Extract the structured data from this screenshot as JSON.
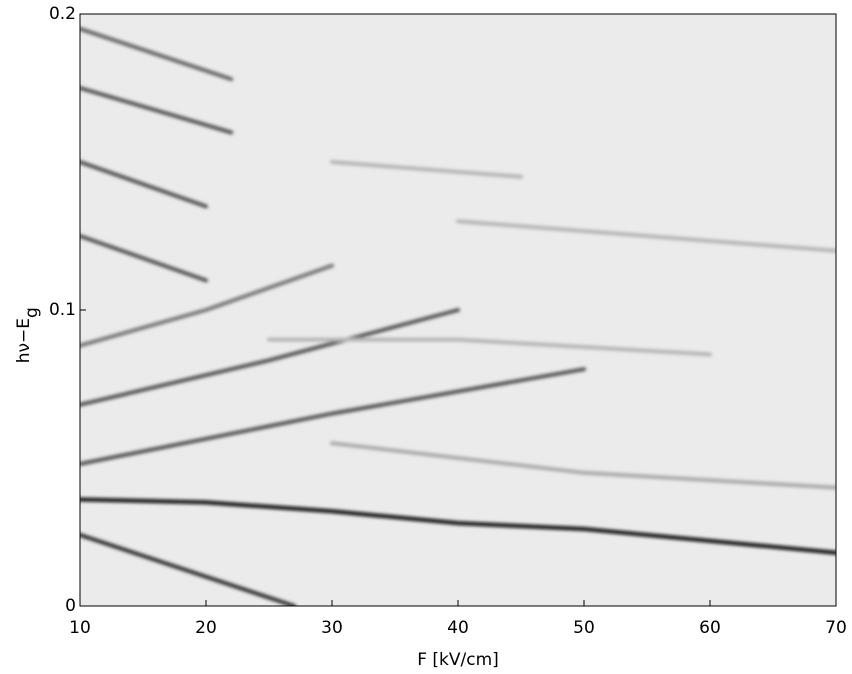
{
  "chart_data": {
    "type": "intensity-map",
    "xlabel": "F [kV/cm]",
    "ylabel": "hν−E",
    "ylabel_subscript": "g",
    "xlim": [
      10,
      70
    ],
    "ylim": [
      0,
      0.2
    ],
    "xticks": [
      10,
      20,
      30,
      40,
      50,
      60,
      70
    ],
    "yticks": [
      0,
      0.1,
      0.2
    ],
    "background": "#ebebeb",
    "series": [
      {
        "color": "#111111",
        "x": [
          10,
          20,
          30,
          40,
          50,
          60,
          70
        ],
        "values": [
          0.036,
          0.035,
          0.032,
          0.028,
          0.026,
          0.022,
          0.018
        ]
      },
      {
        "color": "#333333",
        "x": [
          10,
          27
        ],
        "values": [
          0.024,
          0
        ]
      },
      {
        "color": "#555555",
        "x": [
          10,
          30,
          50
        ],
        "values": [
          0.048,
          0.065,
          0.08
        ]
      },
      {
        "color": "#555555",
        "x": [
          10,
          25,
          40
        ],
        "values": [
          0.068,
          0.083,
          0.1
        ]
      },
      {
        "color": "#777777",
        "x": [
          10,
          20,
          30
        ],
        "values": [
          0.088,
          0.1,
          0.115
        ]
      },
      {
        "color": "#555555",
        "x": [
          10,
          20
        ],
        "values": [
          0.125,
          0.11
        ]
      },
      {
        "color": "#555555",
        "x": [
          10,
          20
        ],
        "values": [
          0.15,
          0.135
        ]
      },
      {
        "color": "#555555",
        "x": [
          10,
          22
        ],
        "values": [
          0.175,
          0.16
        ]
      },
      {
        "color": "#666666",
        "x": [
          10,
          22
        ],
        "values": [
          0.195,
          0.178
        ]
      },
      {
        "color": "#aaaaaa",
        "x": [
          30,
          50,
          70
        ],
        "values": [
          0.055,
          0.045,
          0.04
        ]
      },
      {
        "color": "#b5b5b5",
        "x": [
          40,
          55,
          70
        ],
        "values": [
          0.13,
          0.125,
          0.12
        ]
      },
      {
        "color": "#b5b5b5",
        "x": [
          25,
          40,
          60
        ],
        "values": [
          0.09,
          0.09,
          0.085
        ]
      },
      {
        "color": "#b5b5b5",
        "x": [
          30,
          45
        ],
        "values": [
          0.15,
          0.145
        ]
      }
    ]
  }
}
